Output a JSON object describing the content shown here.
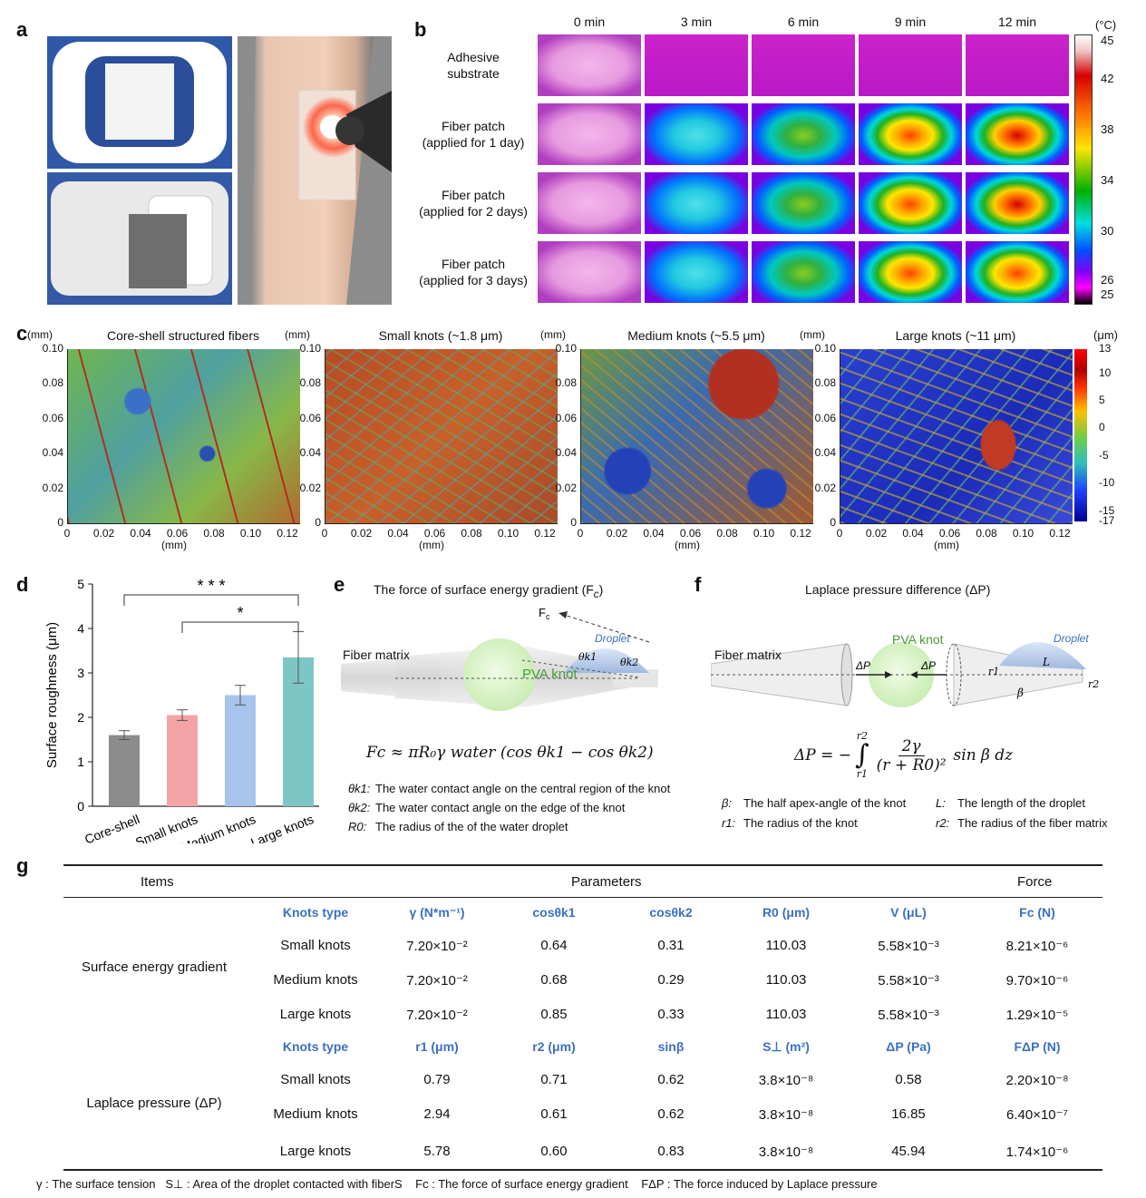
{
  "panel_labels": {
    "a": "a",
    "b": "b",
    "c": "c",
    "d": "d",
    "e": "e",
    "f": "f",
    "g": "g"
  },
  "thermal": {
    "columns": [
      "0 min",
      "3 min",
      "6 min",
      "9 min",
      "12 min"
    ],
    "rows": [
      {
        "label": "Adhesive\nsubstrate",
        "levels": [
          0,
          0,
          0,
          0,
          0
        ]
      },
      {
        "label": "Fiber patch\n(applied for 1 day)",
        "levels": [
          0,
          0.45,
          0.65,
          0.8,
          0.9
        ]
      },
      {
        "label": "Fiber patch\n(applied for 2 days)",
        "levels": [
          0,
          0.42,
          0.6,
          0.82,
          0.88
        ]
      },
      {
        "label": "Fiber patch\n(applied for 3 days)",
        "levels": [
          0,
          0.5,
          0.66,
          0.8,
          0.82
        ]
      }
    ],
    "colorbar_unit": "(°C)",
    "colorbar_ticks": [
      "45",
      "42",
      "38",
      "34",
      "30",
      "26",
      "25"
    ]
  },
  "maps": [
    {
      "title": "Core-shell structured fibers",
      "style": "green"
    },
    {
      "title": "Small knots (~1.8 μm)",
      "style": "red"
    },
    {
      "title": "Medium knots (~5.5 μm)",
      "style": "mixed"
    },
    {
      "title": "Large knots (~11 μm)",
      "style": "blue"
    }
  ],
  "map_axes": {
    "unit_y": "(mm)",
    "unit_x": "(mm)",
    "y_ticks": [
      "0.10",
      "0.08",
      "0.06",
      "0.04",
      "0.02",
      "0"
    ],
    "x_ticks": [
      "0",
      "0.02",
      "0.04",
      "0.06",
      "0.08",
      "0.10",
      "0.12"
    ],
    "colorbar_unit": "(μm)",
    "colorbar_ticks": [
      "13",
      "10",
      "5",
      "0",
      "-5",
      "-10",
      "-15",
      "-17"
    ]
  },
  "chart_data": {
    "type": "bar",
    "categories": [
      "Core-shell",
      "Small knots",
      "Medium knots",
      "Large knots"
    ],
    "values": [
      1.6,
      2.05,
      2.5,
      3.35
    ],
    "errors": [
      0.1,
      0.12,
      0.22,
      0.58
    ],
    "colors": [
      "#8c8c8c",
      "#f4a3a6",
      "#a6c4ec",
      "#7ec6c6"
    ],
    "ylabel": "Surface roughness (μm)",
    "ylim": [
      0,
      5
    ],
    "yticks": [
      "0",
      "1",
      "2",
      "3",
      "4",
      "5"
    ],
    "significance": [
      {
        "from": "Core-shell",
        "to": "Large knots",
        "mark": "* * *"
      },
      {
        "from": "Small knots",
        "to": "Large knots",
        "mark": "*"
      }
    ]
  },
  "panel_e": {
    "title": "The force of surface energy gradient (F",
    "title_sub": "c",
    "title_end": ")",
    "fiber_matrix": "Fiber matrix",
    "pva_knot": "PVA knot",
    "droplet": "Droplet",
    "fc_label": "F",
    "fc_sub": "c",
    "theta1": "θk1",
    "theta2": "θk2",
    "formula": "Fc ≈ πR₀γ water (cos θk1 − cos θk2)",
    "legend": [
      {
        "sym": "θk1:",
        "text": "The water contact angle on the central region of the knot"
      },
      {
        "sym": "θk2:",
        "text": "The water contact angle on the edge of the knot"
      },
      {
        "sym": "R0:",
        "text": "The radius of the of the water droplet"
      }
    ]
  },
  "panel_f": {
    "title": "Laplace pressure difference (ΔP)",
    "fiber_matrix": "Fiber matrix",
    "pva_knot": "PVA knot",
    "droplet": "Droplet",
    "dp": "ΔP",
    "L": "L",
    "r1": "r1",
    "r2": "r2",
    "beta": "β",
    "formula_lhs": "ΔP = −",
    "formula_int": "∫",
    "formula_upper": "r2",
    "formula_lower": "r1",
    "formula_num": "2γ",
    "formula_den": "(r + R0)²",
    "formula_tail": "sin β dz",
    "legend": [
      {
        "sym": "β:",
        "text": "The half apex-angle of the knot"
      },
      {
        "sym": "L:",
        "text": "The length of the droplet"
      },
      {
        "sym": "r1:",
        "text": "The radius of the knot"
      },
      {
        "sym": "r2:",
        "text": "The radius of the fiber matrix"
      }
    ]
  },
  "table": {
    "header": {
      "items": "Items",
      "parameters": "Parameters",
      "force": "Force"
    },
    "sections": [
      {
        "name": "Surface energy gradient",
        "columns": [
          "Knots type",
          "γ (N*m⁻¹)",
          "cosθk1",
          "cosθk2",
          "R0 (μm)",
          "V (μL)",
          "Fc (N)"
        ],
        "rows": [
          [
            "Small knots",
            "7.20×10⁻²",
            "0.64",
            "0.31",
            "110.03",
            "5.58×10⁻³",
            "8.21×10⁻⁶"
          ],
          [
            "Medium knots",
            "7.20×10⁻²",
            "0.68",
            "0.29",
            "110.03",
            "5.58×10⁻³",
            "9.70×10⁻⁶"
          ],
          [
            "Large knots",
            "7.20×10⁻²",
            "0.85",
            "0.33",
            "110.03",
            "5.58×10⁻³",
            "1.29×10⁻⁵"
          ]
        ]
      },
      {
        "name": "Laplace pressure (ΔP)",
        "columns": [
          "Knots type",
          "r1 (μm)",
          "r2 (μm)",
          "sinβ",
          "S⊥ (m²)",
          "ΔP (Pa)",
          "FΔP (N)"
        ],
        "rows": [
          [
            "Small knots",
            "0.79",
            "0.71",
            "0.62",
            "3.8×10⁻⁸",
            "0.58",
            "2.20×10⁻⁸"
          ],
          [
            "Medium knots",
            "2.94",
            "0.61",
            "0.62",
            "3.8×10⁻⁸",
            "16.85",
            "6.40×10⁻⁷"
          ],
          [
            "Large knots",
            "5.78",
            "0.60",
            "0.83",
            "3.8×10⁻⁸",
            "45.94",
            "1.74×10⁻⁶"
          ]
        ]
      }
    ],
    "footnote": "γ : The surface tension   S⊥ : Area of the droplet contacted with fiberS    Fc : The force of surface energy gradient    FΔP : The force induced by Laplace pressure"
  }
}
